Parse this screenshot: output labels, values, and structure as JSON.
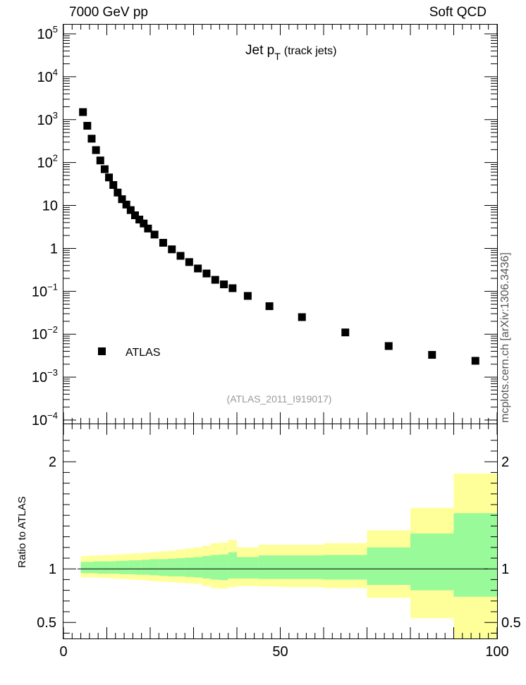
{
  "header": {
    "left": "7000 GeV pp",
    "right": "Soft QCD"
  },
  "side_label": "mcplots.cern.ch [arXiv:1306.3436]",
  "chart_data": [
    {
      "type": "scatter",
      "title": "Jet p",
      "title_sub": "T",
      "title_suffix": "(track jets)",
      "watermark": "(ATLAS_2011_I919017)",
      "yscale": "log",
      "xlim": [
        0,
        100
      ],
      "ylim": [
        0.0001,
        100000
      ],
      "yticks": [
        {
          "value": 100000,
          "base": "10",
          "exp": "5"
        },
        {
          "value": 10000,
          "base": "10",
          "exp": "4"
        },
        {
          "value": 1000,
          "base": "10",
          "exp": "3"
        },
        {
          "value": 100,
          "base": "10",
          "exp": "2"
        },
        {
          "value": 10,
          "base": "10",
          "exp": ""
        },
        {
          "value": 1,
          "base": "1",
          "exp": ""
        },
        {
          "value": 0.1,
          "base": "10",
          "exp": "−1"
        },
        {
          "value": 0.01,
          "base": "10",
          "exp": "−2"
        },
        {
          "value": 0.001,
          "base": "10",
          "exp": "−3"
        },
        {
          "value": 0.0001,
          "base": "10",
          "exp": "−4"
        }
      ],
      "legend": {
        "label": "ATLAS",
        "position": "lower-left"
      },
      "series": [
        {
          "name": "ATLAS",
          "color": "#000000",
          "x": [
            4.5,
            5.5,
            6.5,
            7.5,
            8.5,
            9.5,
            10.5,
            11.5,
            12.5,
            13.5,
            14.5,
            15.5,
            16.5,
            17.5,
            18.5,
            19.5,
            21,
            23,
            25,
            27,
            29,
            31,
            33,
            35,
            37,
            39,
            42.5,
            47.5,
            55,
            65,
            75,
            85,
            95
          ],
          "y": [
            1500,
            720,
            360,
            195,
            112,
            70,
            45,
            30,
            20,
            14,
            10.5,
            7.8,
            5.9,
            4.7,
            3.8,
            2.9,
            2.1,
            1.35,
            0.95,
            0.67,
            0.48,
            0.34,
            0.26,
            0.185,
            0.145,
            0.118,
            0.078,
            0.045,
            0.025,
            0.011,
            0.0053,
            0.0033,
            0.0024
          ]
        }
      ]
    },
    {
      "type": "area",
      "ylabel": "Ratio to ATLAS",
      "xlim": [
        0,
        100
      ],
      "ylim": [
        0.35,
        2.35
      ],
      "xticks": [
        0,
        50,
        100
      ],
      "yticks": [
        0.5,
        1,
        2
      ],
      "colors": {
        "stat": "#98fa98",
        "total": "#ffff99"
      },
      "bins": [
        {
          "x0": 4,
          "x1": 5,
          "tot": [
            0.92,
            1.12
          ],
          "stat": [
            0.96,
            1.065
          ]
        },
        {
          "x0": 5,
          "x1": 6,
          "tot": [
            0.92,
            1.12
          ],
          "stat": [
            0.96,
            1.065
          ]
        },
        {
          "x0": 6,
          "x1": 7,
          "tot": [
            0.92,
            1.125
          ],
          "stat": [
            0.96,
            1.065
          ]
        },
        {
          "x0": 7,
          "x1": 8,
          "tot": [
            0.92,
            1.125
          ],
          "stat": [
            0.96,
            1.07
          ]
        },
        {
          "x0": 8,
          "x1": 9,
          "tot": [
            0.915,
            1.125
          ],
          "stat": [
            0.955,
            1.07
          ]
        },
        {
          "x0": 9,
          "x1": 10,
          "tot": [
            0.915,
            1.13
          ],
          "stat": [
            0.955,
            1.07
          ]
        },
        {
          "x0": 10,
          "x1": 11,
          "tot": [
            0.915,
            1.13
          ],
          "stat": [
            0.955,
            1.07
          ]
        },
        {
          "x0": 11,
          "x1": 12,
          "tot": [
            0.91,
            1.13
          ],
          "stat": [
            0.955,
            1.07
          ]
        },
        {
          "x0": 12,
          "x1": 13,
          "tot": [
            0.91,
            1.135
          ],
          "stat": [
            0.955,
            1.075
          ]
        },
        {
          "x0": 13,
          "x1": 14,
          "tot": [
            0.905,
            1.135
          ],
          "stat": [
            0.95,
            1.075
          ]
        },
        {
          "x0": 14,
          "x1": 15,
          "tot": [
            0.905,
            1.14
          ],
          "stat": [
            0.95,
            1.075
          ]
        },
        {
          "x0": 15,
          "x1": 16,
          "tot": [
            0.9,
            1.14
          ],
          "stat": [
            0.95,
            1.08
          ]
        },
        {
          "x0": 16,
          "x1": 17,
          "tot": [
            0.9,
            1.145
          ],
          "stat": [
            0.948,
            1.08
          ]
        },
        {
          "x0": 17,
          "x1": 18,
          "tot": [
            0.895,
            1.145
          ],
          "stat": [
            0.945,
            1.08
          ]
        },
        {
          "x0": 18,
          "x1": 19,
          "tot": [
            0.895,
            1.15
          ],
          "stat": [
            0.945,
            1.085
          ]
        },
        {
          "x0": 19,
          "x1": 20,
          "tot": [
            0.89,
            1.15
          ],
          "stat": [
            0.945,
            1.085
          ]
        },
        {
          "x0": 20,
          "x1": 22,
          "tot": [
            0.885,
            1.155
          ],
          "stat": [
            0.94,
            1.09
          ]
        },
        {
          "x0": 22,
          "x1": 24,
          "tot": [
            0.88,
            1.165
          ],
          "stat": [
            0.935,
            1.09
          ]
        },
        {
          "x0": 24,
          "x1": 26,
          "tot": [
            0.875,
            1.17
          ],
          "stat": [
            0.93,
            1.095
          ]
        },
        {
          "x0": 26,
          "x1": 28,
          "tot": [
            0.87,
            1.18
          ],
          "stat": [
            0.93,
            1.1
          ]
        },
        {
          "x0": 28,
          "x1": 30,
          "tot": [
            0.865,
            1.19
          ],
          "stat": [
            0.925,
            1.105
          ]
        },
        {
          "x0": 30,
          "x1": 32,
          "tot": [
            0.86,
            1.2
          ],
          "stat": [
            0.92,
            1.11
          ]
        },
        {
          "x0": 32,
          "x1": 34,
          "tot": [
            0.84,
            1.215
          ],
          "stat": [
            0.91,
            1.12
          ]
        },
        {
          "x0": 34,
          "x1": 36,
          "tot": [
            0.82,
            1.24
          ],
          "stat": [
            0.9,
            1.13
          ]
        },
        {
          "x0": 36,
          "x1": 38,
          "tot": [
            0.815,
            1.245
          ],
          "stat": [
            0.895,
            1.135
          ]
        },
        {
          "x0": 38,
          "x1": 40,
          "tot": [
            0.83,
            1.27
          ],
          "stat": [
            0.91,
            1.155
          ]
        },
        {
          "x0": 40,
          "x1": 45,
          "tot": [
            0.84,
            1.2
          ],
          "stat": [
            0.91,
            1.11
          ]
        },
        {
          "x0": 45,
          "x1": 50,
          "tot": [
            0.835,
            1.225
          ],
          "stat": [
            0.905,
            1.125
          ]
        },
        {
          "x0": 50,
          "x1": 60,
          "tot": [
            0.83,
            1.225
          ],
          "stat": [
            0.905,
            1.125
          ]
        },
        {
          "x0": 60,
          "x1": 70,
          "tot": [
            0.82,
            1.24
          ],
          "stat": [
            0.9,
            1.13
          ]
        },
        {
          "x0": 70,
          "x1": 80,
          "tot": [
            0.73,
            1.36
          ],
          "stat": [
            0.85,
            1.2
          ]
        },
        {
          "x0": 80,
          "x1": 90,
          "tot": [
            0.54,
            1.57
          ],
          "stat": [
            0.8,
            1.33
          ]
        },
        {
          "x0": 90,
          "x1": 100,
          "tot": [
            0.35,
            1.89
          ],
          "stat": [
            0.74,
            1.52
          ]
        }
      ]
    }
  ]
}
